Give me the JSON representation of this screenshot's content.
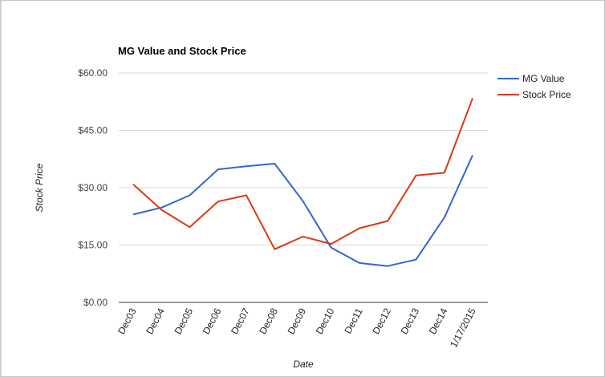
{
  "chart_data": {
    "type": "line",
    "title": "MG Value and Stock Price",
    "xlabel": "Date",
    "ylabel": "Stock Price",
    "categories": [
      "Dec03",
      "Dec04",
      "Dec05",
      "Dec06",
      "Dec07",
      "Dec08",
      "Dec09",
      "Dec10",
      "Dec11",
      "Dec12",
      "Dec13",
      "Dec14",
      "1/17/2015"
    ],
    "yticks": [
      "$0.00",
      "$15.00",
      "$30.00",
      "$45.00",
      "$60.00"
    ],
    "ylim": [
      0,
      60
    ],
    "legend_position": "right",
    "grid": true,
    "series": [
      {
        "name": "MG Value",
        "color": "#3366cc",
        "values": [
          23.0,
          24.8,
          28.0,
          34.8,
          35.6,
          36.3,
          26.5,
          14.3,
          10.3,
          9.5,
          11.2,
          22.2,
          38.5
        ]
      },
      {
        "name": "Stock Price",
        "color": "#dc3912",
        "values": [
          30.9,
          24.2,
          19.7,
          26.4,
          28.0,
          13.9,
          17.2,
          15.3,
          19.4,
          21.3,
          33.2,
          33.9,
          53.4
        ]
      }
    ]
  }
}
